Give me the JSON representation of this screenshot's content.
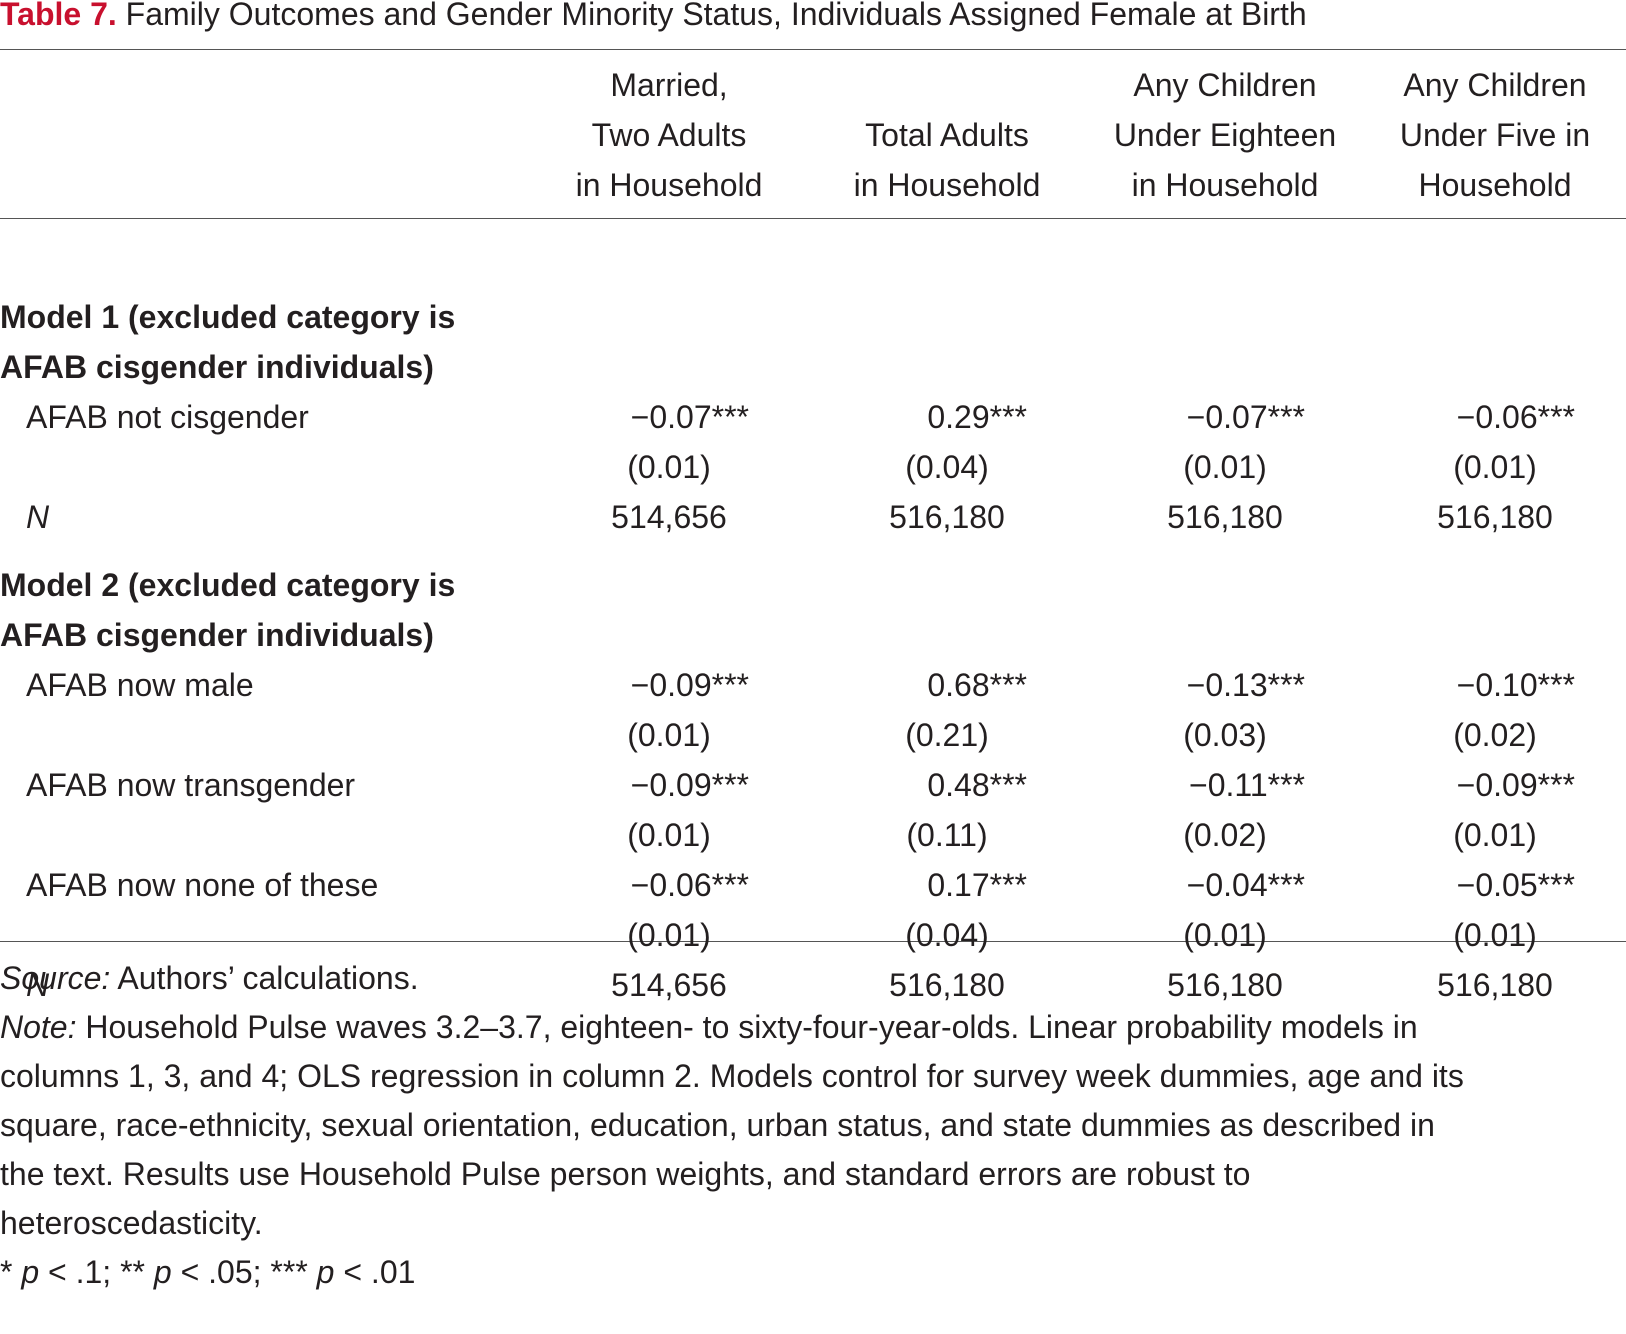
{
  "title": {
    "label": "Table 7.",
    "text": "Family Outcomes and Gender Minority Status, Individuals Assigned Female at Birth"
  },
  "columns": [
    [
      "Married,",
      "Two Adults",
      "in Household"
    ],
    [
      "Total Adults",
      "in Household"
    ],
    [
      "Any Children",
      "Under Eighteen",
      "in Household"
    ],
    [
      "Any Children",
      "Under Five in",
      "Household"
    ]
  ],
  "model1": {
    "heading_line1": "Model 1 (excluded category  is",
    "heading_line2": "AFAB cisgender individuals)",
    "rows": [
      {
        "label": "AFAB not cisgender",
        "coef": [
          "−0.07***",
          "0.29***",
          "−0.07***",
          "−0.06***"
        ],
        "se": [
          "(0.01)",
          "(0.04)",
          "(0.01)",
          "(0.01)"
        ]
      }
    ],
    "n_label": "N",
    "n": [
      "514,656",
      "516,180",
      "516,180",
      "516,180"
    ]
  },
  "model2": {
    "heading_line1": "Model 2 (excluded category is",
    "heading_line2": "AFAB cisgender individuals)",
    "rows": [
      {
        "label": "AFAB now male",
        "coef": [
          "−0.09***",
          "0.68***",
          "−0.13***",
          "−0.10***"
        ],
        "se": [
          "(0.01)",
          "(0.21)",
          "(0.03)",
          "(0.02)"
        ]
      },
      {
        "label": "AFAB now transgender",
        "coef": [
          "−0.09***",
          "0.48***",
          "−0.11***",
          "−0.09***"
        ],
        "se": [
          "(0.01)",
          "(0.11)",
          "(0.02)",
          "(0.01)"
        ]
      },
      {
        "label": "AFAB now none of these",
        "coef": [
          "−0.06***",
          "0.17***",
          "−0.04***",
          "−0.05***"
        ],
        "se": [
          "(0.01)",
          "(0.04)",
          "(0.01)",
          "(0.01)"
        ]
      }
    ],
    "n_label": "N",
    "n": [
      "514,656",
      "516,180",
      "516,180",
      "516,180"
    ]
  },
  "footer": {
    "source_label": "Source:",
    "source_text": " Authors’ calculations.",
    "note_label": "Note:",
    "note_lines": [
      " Household Pulse waves 3.2–3.7, eighteen- to sixty-four-year-olds. Linear probability models in",
      "columns 1, 3, and 4; OLS regression in column 2. Models control for survey week dummies, age and its",
      "square, race-ethnicity, sexual orientation, education, urban status, and state dummies as described in",
      "the text. Results use Household Pulse person weights, and standard errors are robust to",
      "heteroscedasticity."
    ],
    "sig": {
      "s1": "* ",
      "p1": "p",
      "t1": " < .1; ** ",
      "p2": "p",
      "t2": " < .05; *** ",
      "p3": "p",
      "t3": " < .01"
    }
  },
  "colors": {
    "title_accent": "#c8102e",
    "text": "#231f20",
    "rule": "#555555"
  }
}
